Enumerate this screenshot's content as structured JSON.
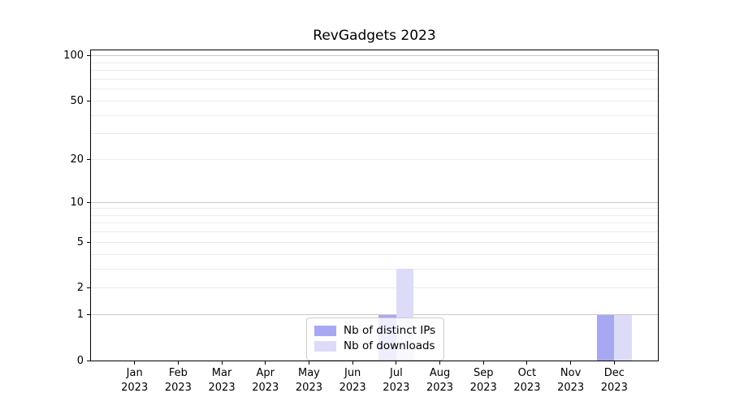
{
  "chart_data": {
    "type": "bar",
    "title": "RevGadgets 2023",
    "categories": [
      "Jan 2023",
      "Feb 2023",
      "Mar 2023",
      "Apr 2023",
      "May 2023",
      "Jun 2023",
      "Jul 2023",
      "Aug 2023",
      "Sep 2023",
      "Oct 2023",
      "Nov 2023",
      "Dec 2023"
    ],
    "series": [
      {
        "name": "Nb of distinct IPs",
        "color": "#a8a8f2",
        "values": [
          0,
          0,
          0,
          0,
          0,
          0,
          1,
          0,
          0,
          0,
          0,
          1
        ]
      },
      {
        "name": "Nb of downloads",
        "color": "#dcdcf8",
        "values": [
          0,
          0,
          0,
          0,
          0,
          0,
          3,
          0,
          0,
          0,
          0,
          1
        ]
      }
    ],
    "xlabel": "",
    "ylabel": "",
    "yaxis": {
      "scale": "log1p",
      "ticks": [
        0,
        1,
        2,
        5,
        10,
        20,
        50,
        100
      ],
      "major_gridlines": [
        1,
        10,
        100
      ],
      "minor_gridlines": [
        2,
        3,
        4,
        5,
        6,
        7,
        8,
        9,
        20,
        30,
        40,
        50,
        60,
        70,
        80,
        90
      ],
      "ylim": [
        0,
        110
      ]
    },
    "grid": "both",
    "legend": {
      "position": "bottom-center",
      "entries": [
        "Nb of distinct IPs",
        "Nb of downloads"
      ]
    },
    "colors": {
      "background": "#ffffff",
      "spine": "#000000",
      "major_grid": "#c9c9c9",
      "minor_grid": "#ececec"
    }
  }
}
